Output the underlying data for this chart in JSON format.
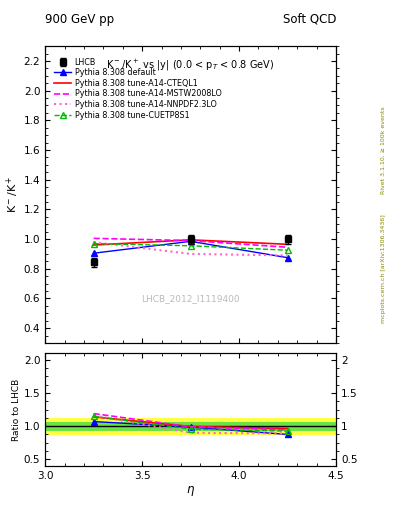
{
  "title_top": "900 GeV pp",
  "title_right": "Soft QCD",
  "plot_title": "K$^-$/K$^+$ vs |y| (0.0 < p$_T$ < 0.8 GeV)",
  "ylabel_main": "K$^-$/K$^+$",
  "ylabel_ratio": "Ratio to LHCB",
  "xlabel": "$\\eta$",
  "watermark": "LHCB_2012_I1119400",
  "right_label_top": "Rivet 3.1.10, ≥ 100k events",
  "right_label_bottom": "mcplots.cern.ch [arXiv:1306.3436]",
  "lhcb_eta": [
    3.25,
    3.75,
    4.25
  ],
  "lhcb_val": [
    0.845,
    1.0,
    1.0
  ],
  "lhcb_err": [
    0.03,
    0.03,
    0.03
  ],
  "default_eta": [
    3.25,
    3.75,
    4.25
  ],
  "default_val": [
    0.905,
    0.985,
    0.875
  ],
  "cteql1_eta": [
    3.25,
    3.75,
    4.25
  ],
  "cteql1_val": [
    0.96,
    0.995,
    0.965
  ],
  "mstw_eta": [
    3.25,
    3.75,
    4.25
  ],
  "mstw_val": [
    1.005,
    0.99,
    0.945
  ],
  "nnpdf_eta": [
    3.25,
    3.75,
    4.25
  ],
  "nnpdf_val": [
    0.98,
    0.9,
    0.89
  ],
  "cuetp_eta": [
    3.25,
    3.75,
    4.25
  ],
  "cuetp_val": [
    0.97,
    0.955,
    0.925
  ],
  "ratio_default": [
    1.07,
    0.985,
    0.875
  ],
  "ratio_cteql1": [
    1.14,
    0.995,
    0.965
  ],
  "ratio_mstw": [
    1.19,
    0.99,
    0.945
  ],
  "ratio_nnpdf": [
    1.16,
    0.9,
    0.89
  ],
  "ratio_cuetp": [
    1.15,
    0.955,
    0.925
  ],
  "band_yellow_lo": 0.87,
  "band_yellow_hi": 1.13,
  "band_green_lo": 0.93,
  "band_green_hi": 1.07,
  "ylim_main": [
    0.3,
    2.3
  ],
  "ylim_ratio": [
    0.4,
    2.1
  ],
  "xlim": [
    3.0,
    4.5
  ],
  "color_default": "#0000ff",
  "color_cteql1": "#ff0000",
  "color_mstw": "#ff00ff",
  "color_nnpdf": "#ff66cc",
  "color_cuetp": "#00bb00",
  "color_lhcb": "#000000",
  "bg_color": "#ffffff"
}
